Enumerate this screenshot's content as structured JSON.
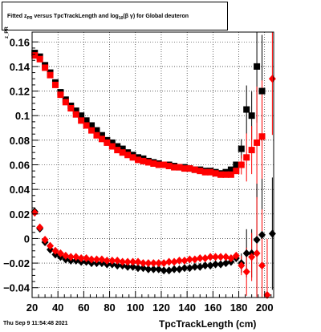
{
  "title": {
    "pre": "Fitted  z",
    "sub1": "PR",
    "mid": "  versus TpcTrackLength and log",
    "sub2": "10",
    "post": "(β  γ) for Global deuteron"
  },
  "timestamp": "Thu Sep  9 11:54:48 2021",
  "chart_data": {
    "type": "scatter",
    "xlabel": "TpcTrackLength (cm)",
    "ylabel": "z_PR",
    "xlim": [
      20,
      207
    ],
    "ylim": [
      -0.048,
      0.168
    ],
    "x_ticks": [
      20,
      40,
      60,
      80,
      100,
      120,
      140,
      160,
      180,
      200
    ],
    "y_ticks": [
      -0.04,
      -0.02,
      0,
      0.02,
      0.04,
      0.06,
      0.08,
      0.1,
      0.12,
      0.14,
      0.16
    ],
    "x_tick_labels": [
      "20",
      "40",
      "60",
      "80",
      "100",
      "120",
      "140",
      "160",
      "180",
      "200"
    ],
    "y_tick_labels": [
      "−0.04",
      "−0.02",
      "0",
      "0.02",
      "0.04",
      "0.06",
      "0.08",
      "0.1",
      "0.12",
      "0.14",
      "0.16"
    ],
    "grid": true,
    "colors": {
      "black": "#000000",
      "red": "#ff0000"
    },
    "series": [
      {
        "marker": "square",
        "color": "#000000",
        "x": [
          22,
          26,
          30,
          34,
          38,
          42,
          46,
          50,
          54,
          58,
          62,
          66,
          70,
          74,
          78,
          82,
          86,
          90,
          94,
          98,
          102,
          106,
          110,
          114,
          118,
          122,
          126,
          130,
          134,
          138,
          142,
          146,
          150,
          154,
          158,
          162,
          166,
          170,
          174,
          178,
          182,
          186,
          190,
          194,
          198
        ],
        "y": [
          0.151,
          0.148,
          0.141,
          0.135,
          0.127,
          0.119,
          0.113,
          0.108,
          0.104,
          0.1,
          0.096,
          0.092,
          0.088,
          0.084,
          0.08,
          0.078,
          0.075,
          0.073,
          0.07,
          0.068,
          0.066,
          0.065,
          0.063,
          0.062,
          0.061,
          0.06,
          0.06,
          0.059,
          0.058,
          0.058,
          0.057,
          0.056,
          0.056,
          0.055,
          0.055,
          0.054,
          0.053,
          0.054,
          0.056,
          0.06,
          0.073,
          0.105,
          0.1,
          0.14,
          0.12
        ]
      },
      {
        "marker": "square",
        "color": "#ff0000",
        "x": [
          22,
          26,
          30,
          34,
          38,
          42,
          46,
          50,
          54,
          58,
          62,
          66,
          70,
          74,
          78,
          82,
          86,
          90,
          94,
          98,
          102,
          106,
          110,
          114,
          118,
          122,
          126,
          130,
          134,
          138,
          142,
          146,
          150,
          154,
          158,
          162,
          166,
          170,
          174,
          178,
          182,
          186,
          190,
          194,
          198
        ],
        "y": [
          0.149,
          0.146,
          0.139,
          0.133,
          0.125,
          0.117,
          0.111,
          0.106,
          0.101,
          0.096,
          0.092,
          0.088,
          0.084,
          0.081,
          0.078,
          0.075,
          0.072,
          0.07,
          0.068,
          0.066,
          0.064,
          0.063,
          0.062,
          0.061,
          0.06,
          0.06,
          0.059,
          0.058,
          0.058,
          0.057,
          0.057,
          0.056,
          0.055,
          0.054,
          0.054,
          0.053,
          0.052,
          0.052,
          0.052,
          0.055,
          0.06,
          0.066,
          0.072,
          0.078,
          0.083
        ]
      },
      {
        "marker": "diamond",
        "color": "#000000",
        "x": [
          22,
          26,
          30,
          34,
          38,
          42,
          46,
          50,
          54,
          58,
          62,
          66,
          70,
          74,
          78,
          82,
          86,
          90,
          94,
          98,
          102,
          106,
          110,
          114,
          118,
          122,
          126,
          130,
          134,
          138,
          142,
          146,
          150,
          154,
          158,
          162,
          166,
          170,
          174,
          178,
          182,
          186,
          190,
          194,
          198,
          206
        ],
        "y": [
          0.022,
          0.008,
          -0.003,
          -0.009,
          -0.013,
          -0.015,
          -0.017,
          -0.018,
          -0.018,
          -0.019,
          -0.019,
          -0.02,
          -0.02,
          -0.02,
          -0.021,
          -0.021,
          -0.022,
          -0.022,
          -0.023,
          -0.023,
          -0.024,
          -0.024,
          -0.025,
          -0.025,
          -0.025,
          -0.026,
          -0.026,
          -0.025,
          -0.025,
          -0.024,
          -0.024,
          -0.023,
          -0.023,
          -0.022,
          -0.022,
          -0.021,
          -0.021,
          -0.02,
          -0.019,
          -0.016,
          -0.02,
          -0.012,
          -0.012,
          -0.001,
          0.003,
          0.004
        ]
      },
      {
        "marker": "diamond",
        "color": "#ff0000",
        "x": [
          22,
          26,
          30,
          34,
          38,
          42,
          46,
          50,
          54,
          58,
          62,
          66,
          70,
          74,
          78,
          82,
          86,
          90,
          94,
          98,
          102,
          106,
          110,
          114,
          118,
          122,
          126,
          130,
          134,
          138,
          142,
          146,
          150,
          154,
          158,
          162,
          166,
          170,
          174,
          178,
          182,
          186,
          190,
          194,
          198,
          202,
          206
        ],
        "y": [
          0.021,
          0.009,
          -0.001,
          -0.006,
          -0.01,
          -0.012,
          -0.014,
          -0.015,
          -0.015,
          -0.016,
          -0.016,
          -0.017,
          -0.017,
          -0.017,
          -0.018,
          -0.018,
          -0.018,
          -0.019,
          -0.019,
          -0.019,
          -0.019,
          -0.02,
          -0.02,
          -0.02,
          -0.02,
          -0.02,
          -0.019,
          -0.019,
          -0.018,
          -0.018,
          -0.017,
          -0.017,
          -0.016,
          -0.016,
          -0.015,
          -0.015,
          -0.015,
          -0.015,
          -0.016,
          -0.014,
          -0.022,
          -0.027,
          -0.015,
          -0.012,
          -0.022,
          -0.046,
          0.13
        ]
      }
    ]
  }
}
